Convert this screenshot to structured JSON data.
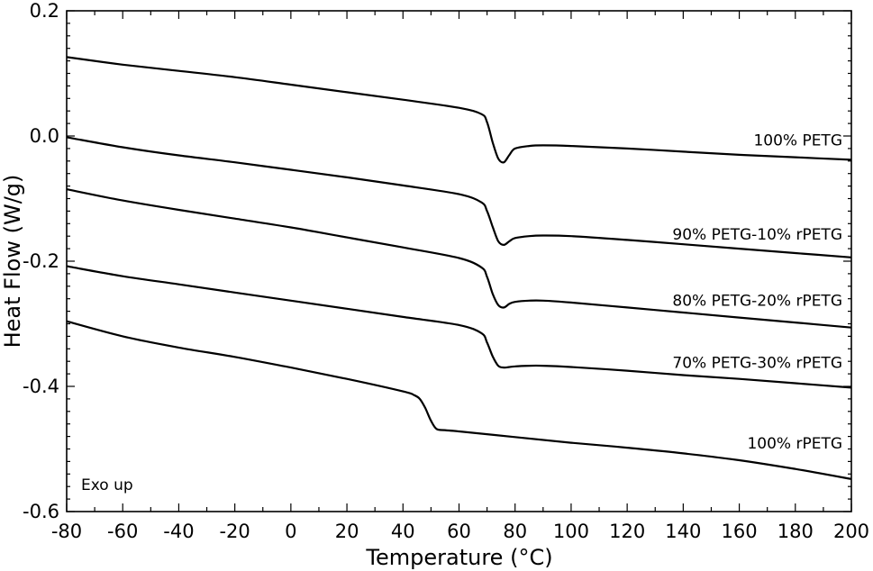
{
  "chart_data": {
    "type": "line",
    "xlabel": "Temperature (°C)",
    "ylabel": "Heat Flow (W/g)",
    "annotation": "Exo up",
    "xlim": [
      -80,
      200
    ],
    "ylim": [
      -0.6,
      0.2
    ],
    "xticks": [
      -80,
      -60,
      -40,
      -20,
      0,
      20,
      40,
      60,
      80,
      100,
      120,
      140,
      160,
      180,
      200
    ],
    "yticks": [
      -0.6,
      -0.4,
      -0.2,
      0.0,
      0.2
    ],
    "xtick_labels": [
      "-80",
      "-60",
      "-40",
      "-20",
      "0",
      "20",
      "40",
      "60",
      "80",
      "100",
      "120",
      "140",
      "160",
      "180",
      "200"
    ],
    "ytick_labels": [
      "-0.6",
      "-0.4",
      "-0.2",
      "0.0",
      "0.2"
    ],
    "line_color": "#000000",
    "series": [
      {
        "name": "100% PETG",
        "x": [
          -80,
          -60,
          -40,
          -20,
          0,
          20,
          40,
          60,
          68,
          70,
          72,
          74,
          76,
          78,
          80,
          85,
          90,
          100,
          120,
          140,
          160,
          180,
          200
        ],
        "y": [
          0.126,
          0.114,
          0.104,
          0.094,
          0.082,
          0.07,
          0.058,
          0.045,
          0.035,
          0.022,
          -0.01,
          -0.036,
          -0.042,
          -0.03,
          -0.02,
          -0.016,
          -0.015,
          -0.016,
          -0.02,
          -0.025,
          -0.03,
          -0.034,
          -0.038
        ]
      },
      {
        "name": "90% PETG-10% rPETG",
        "x": [
          -80,
          -60,
          -40,
          -20,
          0,
          20,
          40,
          60,
          68,
          70,
          72,
          74,
          76,
          78,
          80,
          85,
          90,
          100,
          120,
          140,
          160,
          180,
          200
        ],
        "y": [
          -0.002,
          -0.018,
          -0.031,
          -0.042,
          -0.054,
          -0.066,
          -0.079,
          -0.093,
          -0.106,
          -0.12,
          -0.145,
          -0.168,
          -0.174,
          -0.168,
          -0.163,
          -0.16,
          -0.159,
          -0.16,
          -0.166,
          -0.173,
          -0.18,
          -0.187,
          -0.194
        ]
      },
      {
        "name": "80% PETG-20% rPETG",
        "x": [
          -80,
          -60,
          -40,
          -20,
          0,
          20,
          40,
          60,
          68,
          70,
          72,
          74,
          76,
          78,
          80,
          85,
          90,
          100,
          120,
          140,
          160,
          180,
          200
        ],
        "y": [
          -0.085,
          -0.103,
          -0.118,
          -0.132,
          -0.146,
          -0.162,
          -0.178,
          -0.195,
          -0.21,
          -0.225,
          -0.252,
          -0.27,
          -0.274,
          -0.268,
          -0.265,
          -0.263,
          -0.263,
          -0.266,
          -0.274,
          -0.282,
          -0.29,
          -0.298,
          -0.306
        ]
      },
      {
        "name": "70% PETG-30% rPETG",
        "x": [
          -80,
          -60,
          -40,
          -20,
          0,
          20,
          40,
          60,
          68,
          70,
          72,
          74,
          76,
          78,
          80,
          85,
          90,
          100,
          120,
          140,
          160,
          180,
          200
        ],
        "y": [
          -0.208,
          -0.224,
          -0.237,
          -0.25,
          -0.263,
          -0.276,
          -0.289,
          -0.302,
          -0.315,
          -0.33,
          -0.352,
          -0.367,
          -0.37,
          -0.369,
          -0.368,
          -0.367,
          -0.367,
          -0.369,
          -0.375,
          -0.382,
          -0.388,
          -0.395,
          -0.402
        ]
      },
      {
        "name": "100% rPETG",
        "x": [
          -80,
          -60,
          -40,
          -20,
          0,
          20,
          40,
          44,
          46,
          48,
          50,
          52,
          55,
          60,
          80,
          100,
          120,
          140,
          160,
          180,
          200
        ],
        "y": [
          -0.296,
          -0.32,
          -0.338,
          -0.353,
          -0.37,
          -0.388,
          -0.408,
          -0.414,
          -0.42,
          -0.435,
          -0.455,
          -0.468,
          -0.47,
          -0.472,
          -0.481,
          -0.49,
          -0.498,
          -0.507,
          -0.518,
          -0.532,
          -0.548
        ]
      }
    ]
  }
}
